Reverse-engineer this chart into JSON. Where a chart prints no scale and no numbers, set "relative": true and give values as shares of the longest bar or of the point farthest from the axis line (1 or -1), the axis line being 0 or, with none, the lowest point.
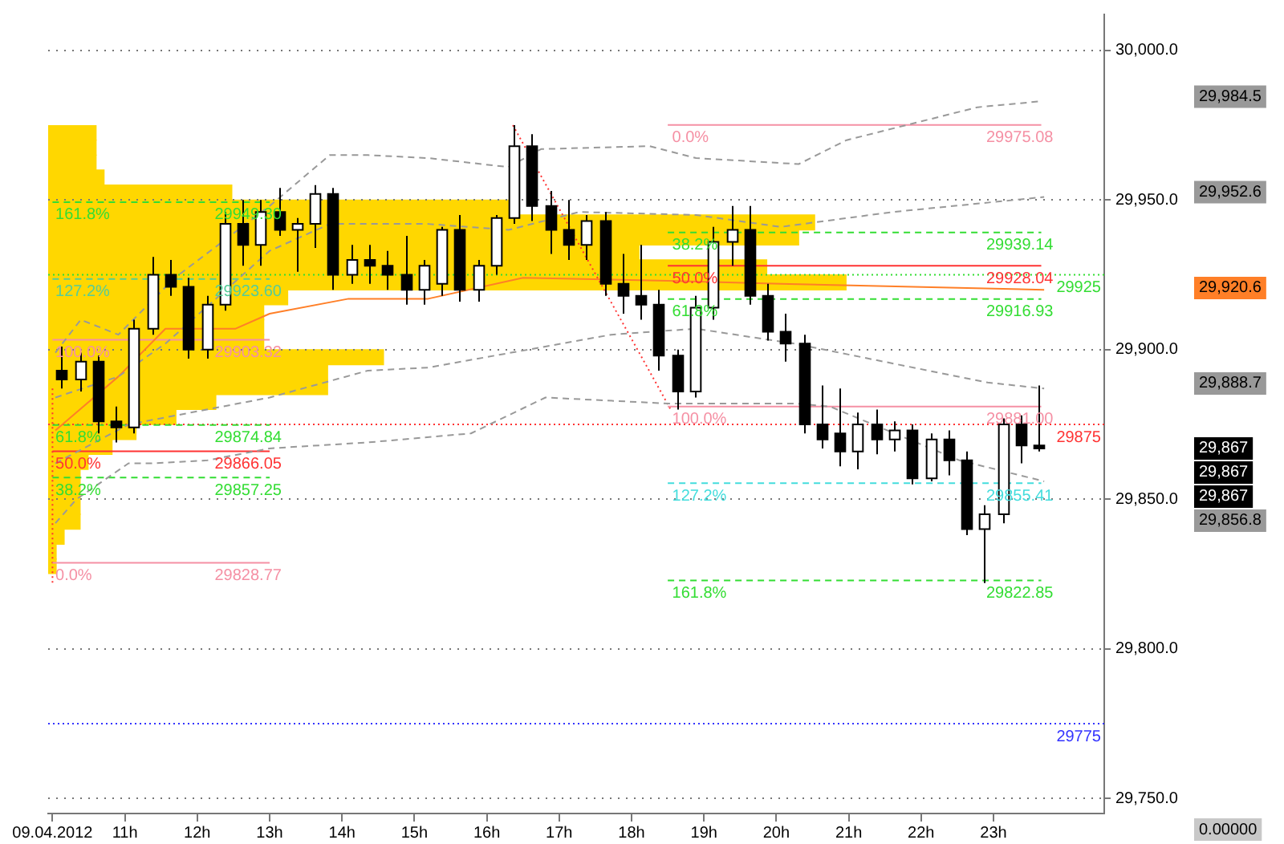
{
  "chart_data": [
    {
      "type": "candlestick",
      "color": "#000000",
      "colors": [
        "#000000",
        "#ffffff",
        "#000000",
        "#000000",
        "#ffffff",
        "#ffffff",
        "#000000",
        "#000000",
        "#ffffff",
        "#ffffff",
        "#000000",
        "#ffffff",
        "#000000",
        "#ffffff",
        "#ffffff",
        "#000000",
        "#ffffff",
        "#000000",
        "#000000",
        "#000000",
        "#ffffff",
        "#ffffff",
        "#000000",
        "#ffffff",
        "#ffffff",
        "#ffffff",
        "#000000",
        "#000000",
        "#000000",
        "#ffffff",
        "#000000",
        "#000000",
        "#000000",
        "#000000",
        "#000000",
        "#ffffff",
        "#ffffff",
        "#ffffff",
        "#000000",
        "#000000",
        "#000000",
        "#000000",
        "#000000",
        "#000000",
        "#ffffff",
        "#000000",
        "#ffffff",
        "#000000",
        "#ffffff",
        "#000000",
        "#000000",
        "#ffffff",
        "#ffffff",
        "#000000",
        "#000000"
      ],
      "x": [
        10.125,
        10.375,
        10.625,
        10.875,
        11.125,
        11.375,
        11.625,
        11.875,
        12.125,
        12.375,
        12.625,
        12.875,
        13.125,
        13.375,
        13.625,
        13.875,
        14.125,
        14.375,
        14.625,
        14.875,
        15.125,
        15.375,
        15.625,
        15.875,
        16.125,
        16.375,
        16.625,
        16.875,
        17.125,
        17.375,
        17.625,
        17.875,
        18.125,
        18.375,
        18.625,
        18.875,
        19.125,
        19.375,
        19.625,
        19.875,
        20.125,
        20.375,
        20.625,
        20.875,
        21.125,
        21.375,
        21.625,
        21.875,
        22.125,
        22.375,
        22.625,
        22.875,
        23.125,
        23.375,
        23.625
      ],
      "ohlc": [
        [
          29893,
          29901,
          29887,
          29890
        ],
        [
          29890,
          29899,
          29886,
          29896
        ],
        [
          29896,
          29898,
          29872,
          29876
        ],
        [
          29876,
          29881,
          29869,
          29874
        ],
        [
          29874,
          29910,
          29872,
          29907
        ],
        [
          29907,
          29931,
          29905,
          29925
        ],
        [
          29925,
          29930,
          29918,
          29921
        ],
        [
          29921,
          29924,
          29897,
          29900
        ],
        [
          29900,
          29918,
          29897,
          29915
        ],
        [
          29915,
          29946,
          29913,
          29942
        ],
        [
          29942,
          29950,
          29928,
          29935
        ],
        [
          29935,
          29950,
          29928,
          29946
        ],
        [
          29946,
          29954,
          29938,
          29940
        ],
        [
          29940,
          29944,
          29926,
          29942
        ],
        [
          29942,
          29955,
          29934,
          29952
        ],
        [
          29952,
          29954,
          29920,
          29925
        ],
        [
          29925,
          29935,
          29922,
          29930
        ],
        [
          29930,
          29935,
          29922,
          29928
        ],
        [
          29928,
          29933,
          29920,
          29925
        ],
        [
          29925,
          29938,
          29915,
          29920
        ],
        [
          29920,
          29930,
          29915,
          29928
        ],
        [
          29922,
          29941,
          29918,
          29940
        ],
        [
          29940,
          29945,
          29916,
          29920
        ],
        [
          29920,
          29930,
          29916,
          29928
        ],
        [
          29928,
          29945,
          29925,
          29944
        ],
        [
          29944,
          29975,
          29942,
          29968
        ],
        [
          29968,
          29972,
          29943,
          29948
        ],
        [
          29948,
          29953,
          29932,
          29940
        ],
        [
          29940,
          29950,
          29930,
          29935
        ],
        [
          29935,
          29945,
          29930,
          29943
        ],
        [
          29943,
          29946,
          29918,
          29922
        ],
        [
          29922,
          29932,
          29912,
          29918
        ],
        [
          29918,
          29935,
          29910,
          29915
        ],
        [
          29915,
          29920,
          29893,
          29898
        ],
        [
          29898,
          29900,
          29880,
          29886
        ],
        [
          29886,
          29918,
          29884,
          29914
        ],
        [
          29914,
          29941,
          29910,
          29936
        ],
        [
          29936,
          29948,
          29928,
          29940
        ],
        [
          29940,
          29948,
          29915,
          29918
        ],
        [
          29918,
          29922,
          29903,
          29906
        ],
        [
          29906,
          29912,
          29896,
          29902
        ],
        [
          29902,
          29905,
          29872,
          29875
        ],
        [
          29875,
          29888,
          29867,
          29870
        ],
        [
          29872,
          29887,
          29861,
          29866
        ],
        [
          29866,
          29879,
          29860,
          29875
        ],
        [
          29875,
          29880,
          29865,
          29870
        ],
        [
          29870,
          29876,
          29866,
          29873
        ],
        [
          29873,
          29875,
          29855,
          29857
        ],
        [
          29857,
          29872,
          29856,
          29870
        ],
        [
          29870,
          29873,
          29858,
          29863
        ],
        [
          29863,
          29866,
          29838,
          29840
        ],
        [
          29840,
          29848,
          29822,
          29845
        ],
        [
          29845,
          29877,
          29842,
          29875
        ],
        [
          29875,
          29878,
          29862,
          29868
        ],
        [
          29868,
          29888,
          29866,
          29867
        ]
      ],
      "xlim": [
        9.94,
        24.53
      ],
      "xticks": [
        {
          "value": 10,
          "label": "09.04.2012"
        },
        {
          "value": 11,
          "label": "11h"
        },
        {
          "value": 12,
          "label": "12h"
        },
        {
          "value": 13,
          "label": "13h"
        },
        {
          "value": 14,
          "label": "14h"
        },
        {
          "value": 15,
          "label": "15h"
        },
        {
          "value": 16,
          "label": "16h"
        },
        {
          "value": 17,
          "label": "17h"
        },
        {
          "value": 18,
          "label": "18h"
        },
        {
          "value": 19,
          "label": "19h"
        },
        {
          "value": 20,
          "label": "20h"
        },
        {
          "value": 21,
          "label": "21h"
        },
        {
          "value": 22,
          "label": "22h"
        },
        {
          "value": 23,
          "label": "23h"
        }
      ],
      "ylim": [
        29745,
        30012
      ],
      "yticks": [
        {
          "value": 29750,
          "label": "29,750.0"
        },
        {
          "value": 29800,
          "label": "29,800.0"
        },
        {
          "value": 29850,
          "label": "29,850.0"
        },
        {
          "value": 29900,
          "label": "29,900.0"
        },
        {
          "value": 29950,
          "label": "29,950.0"
        },
        {
          "value": 30000,
          "label": "30,000.0"
        }
      ],
      "grid": "y",
      "series": [
        {
          "type": "line",
          "color": "#999999",
          "line_style": "dashed",
          "x": [
            10.04,
            10.39,
            10.91,
            11.69,
            13.0,
            13.83,
            14.36,
            15.19,
            16.3,
            16.75,
            18.25,
            18.89,
            20.31,
            20.97,
            22.78,
            23.66
          ],
          "values": [
            29899,
            29910,
            29905,
            29924,
            29948,
            29965,
            29965,
            29964,
            29961,
            29967,
            29968,
            29964,
            29962,
            29970,
            29981,
            29983
          ]
        },
        {
          "type": "line",
          "color": "#999999",
          "line_style": "dashed",
          "x": [
            10.04,
            10.91,
            11.56,
            13.0,
            13.83,
            15.19,
            16.3,
            17.28,
            18.89,
            20.06,
            21.61,
            23.7
          ],
          "values": [
            29884,
            29891,
            29902,
            29933,
            29942,
            29942,
            29940,
            29946,
            29945,
            29941,
            29946,
            29951
          ]
        },
        {
          "type": "line",
          "color": "#999999",
          "line_style": "dashed",
          "x": [
            10.04,
            11.05,
            13.0,
            14.36,
            15.19,
            17.72,
            18.89,
            20.25,
            22.92,
            23.7
          ],
          "values": [
            29862,
            29875,
            29884,
            29893,
            29894,
            29905,
            29907,
            29902,
            29889,
            29887
          ]
        },
        {
          "type": "line",
          "color": "#999999",
          "line_style": "dashed",
          "x": [
            10.04,
            10.33,
            11.05,
            11.36,
            12.14,
            13.0,
            14.36,
            15.78,
            16.81,
            18.5,
            20.25,
            20.74,
            22.53,
            23.7
          ],
          "values": [
            29842,
            29850,
            29862,
            29862,
            29863,
            29867,
            29869,
            29872,
            29884,
            29882,
            29882,
            29881,
            29863,
            29856
          ]
        },
        {
          "type": "line",
          "color": "#ff7f27",
          "line_style": "solid",
          "x": [
            10.04,
            10.91,
            11.56,
            12.53,
            13.0,
            14.09,
            15.19,
            16.5,
            18.5,
            20.06,
            23.7
          ],
          "values": [
            29873,
            29891,
            29907,
            29907,
            29912,
            29917,
            29917,
            29924,
            29923,
            29922,
            29920
          ]
        },
        {
          "type": "line",
          "color": "#33dd33",
          "line_style": "dashed",
          "x": [
            10.0,
            13.0
          ],
          "values": [
            29949.3,
            29949.3
          ]
        },
        {
          "type": "line",
          "color": "#55cc99",
          "line_style": "dashed",
          "x": [
            10.0,
            13.0
          ],
          "values": [
            29923.6,
            29923.6
          ]
        },
        {
          "type": "line",
          "color": "#f590a4",
          "line_style": "solid",
          "x": [
            10.0,
            13.0
          ],
          "values": [
            29903.32,
            29903.32
          ]
        },
        {
          "type": "line",
          "color": "#33dd33",
          "line_style": "dashed",
          "x": [
            10.0,
            13.0
          ],
          "values": [
            29874.84,
            29874.84
          ]
        },
        {
          "type": "line",
          "color": "#ff3333",
          "line_style": "solid",
          "x": [
            10.0,
            13.0
          ],
          "values": [
            29866.05,
            29866.05
          ]
        },
        {
          "type": "line",
          "color": "#33dd33",
          "line_style": "dashed",
          "x": [
            10.0,
            13.0
          ],
          "values": [
            29857.25,
            29857.25
          ]
        },
        {
          "type": "line",
          "color": "#f590a4",
          "line_style": "solid",
          "x": [
            10.0,
            13.0
          ],
          "values": [
            29828.77,
            29828.77
          ]
        },
        {
          "type": "line",
          "color": "#f590a4",
          "line_style": "solid",
          "x": [
            18.5,
            23.66
          ],
          "values": [
            29975.08,
            29975.08
          ]
        },
        {
          "type": "line",
          "color": "#33dd33",
          "line_style": "dashed",
          "x": [
            18.5,
            23.66
          ],
          "values": [
            29939.14,
            29939.14
          ]
        },
        {
          "type": "line",
          "color": "#ff3333",
          "line_style": "solid",
          "x": [
            18.5,
            23.66
          ],
          "values": [
            29928.04,
            29928.04
          ]
        },
        {
          "type": "line",
          "color": "#33dd33",
          "line_style": "dashed",
          "x": [
            18.5,
            23.66
          ],
          "values": [
            29916.93,
            29916.93
          ]
        },
        {
          "type": "line",
          "color": "#f590a4",
          "line_style": "solid",
          "x": [
            18.5,
            23.66
          ],
          "values": [
            29881.0,
            29881.0
          ]
        },
        {
          "type": "line",
          "color": "#44dddd",
          "line_style": "dashed",
          "x": [
            18.5,
            23.66
          ],
          "values": [
            29855.41,
            29855.41
          ]
        },
        {
          "type": "line",
          "color": "#33dd33",
          "line_style": "dashed",
          "x": [
            18.5,
            23.66
          ],
          "values": [
            29822.85,
            29822.85
          ]
        },
        {
          "type": "line",
          "color": "#ff3333",
          "line_style": "dotted",
          "x": [
            16.36,
            18.54
          ],
          "values": [
            29975,
            29880
          ]
        },
        {
          "type": "line",
          "color": "#ff3333",
          "line_style": "dotted",
          "x": [
            10.0,
            10.0
          ],
          "values": [
            29887,
            29822
          ]
        }
      ],
      "ref_lines": [
        {
          "axis": "y",
          "value": 29925,
          "label": "29925",
          "color": "#33dd33",
          "line_style": "dotted"
        },
        {
          "axis": "y",
          "value": 29875,
          "label": "29875",
          "color": "#ff3333",
          "line_style": "dotted"
        },
        {
          "axis": "y",
          "value": 29775,
          "label": "29775",
          "color": "#3333ff",
          "line_style": "dotted"
        }
      ],
      "annotations": [
        {
          "text": "161.8%",
          "x": 10.04,
          "y": 29949.3
        },
        {
          "text": "29949.30",
          "x": 12.24,
          "y": 29949.3
        },
        {
          "text": "127.2%",
          "x": 10.04,
          "y": 29923.6
        },
        {
          "text": "29923.60",
          "x": 12.24,
          "y": 29923.6
        },
        {
          "text": "100.0%",
          "x": 10.04,
          "y": 29903.32
        },
        {
          "text": "29903.32",
          "x": 12.24,
          "y": 29903.32
        },
        {
          "text": "61.8%",
          "x": 10.04,
          "y": 29874.84
        },
        {
          "text": "29874.84",
          "x": 12.24,
          "y": 29874.84
        },
        {
          "text": "50.0%",
          "x": 10.04,
          "y": 29866.05
        },
        {
          "text": "29866.05",
          "x": 12.24,
          "y": 29866.05
        },
        {
          "text": "38.2%",
          "x": 10.04,
          "y": 29857.25
        },
        {
          "text": "29857.25",
          "x": 12.24,
          "y": 29857.25
        },
        {
          "text": "0.0%",
          "x": 10.04,
          "y": 29828.77
        },
        {
          "text": "29828.77",
          "x": 12.24,
          "y": 29828.77
        },
        {
          "text": "0.0%",
          "x": 18.56,
          "y": 29975.08
        },
        {
          "text": "29975.08",
          "x": 22.9,
          "y": 29975.08
        },
        {
          "text": "38.2%",
          "x": 18.56,
          "y": 29939.14
        },
        {
          "text": "29939.14",
          "x": 22.9,
          "y": 29939.14
        },
        {
          "text": "50.0%",
          "x": 18.56,
          "y": 29928.04
        },
        {
          "text": "29928.04",
          "x": 22.9,
          "y": 29928.04
        },
        {
          "text": "61.8%",
          "x": 18.56,
          "y": 29916.93
        },
        {
          "text": "29916.93",
          "x": 22.9,
          "y": 29916.93
        },
        {
          "text": "100.0%",
          "x": 18.56,
          "y": 29881.0
        },
        {
          "text": "29881.00",
          "x": 22.9,
          "y": 29881.0
        },
        {
          "text": "127.2%",
          "x": 18.56,
          "y": 29855.41
        },
        {
          "text": "29855.41",
          "x": 22.9,
          "y": 29855.41
        },
        {
          "text": "161.8%",
          "x": 18.56,
          "y": 29822.85
        },
        {
          "text": "29822.85",
          "x": 22.9,
          "y": 29822.85
        },
        "29,984.5",
        "29,952.6",
        "29,920.6",
        "29,888.7",
        "29,867",
        "29,867",
        "29,867",
        "29,856.8",
        "0.00000"
      ]
    },
    {
      "type": "bar",
      "orientation": "horizontal",
      "relative": true,
      "color": "#ffd700",
      "categories": [
        null,
        null,
        null,
        null,
        null,
        null,
        null,
        null,
        null,
        null,
        null,
        null,
        null,
        null,
        null,
        null,
        null,
        null,
        null,
        null,
        null,
        null,
        null,
        null,
        null,
        null,
        null,
        null,
        null,
        null
      ],
      "values": [
        0.06,
        0.06,
        0.06,
        0.07,
        0.23,
        0.58,
        0.96,
        0.94,
        0.74,
        0.9,
        1,
        0.3,
        0.27,
        0.27,
        0.27,
        0.42,
        0.35,
        0.35,
        0.21,
        0.16,
        0.11,
        0.08,
        0.05,
        0.04,
        0.04,
        0.04,
        0.04,
        0.02,
        0.01,
        0.01
      ]
    }
  ]
}
